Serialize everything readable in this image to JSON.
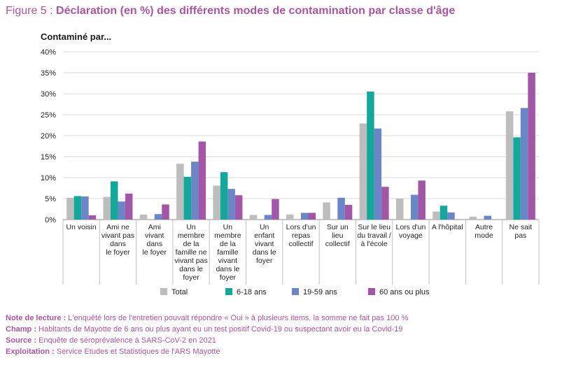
{
  "figure": {
    "number_label": "Figure 5 : ",
    "title": "Déclaration (en %) des différents modes de contamination par classe d'âge"
  },
  "chart_data": {
    "type": "bar",
    "ylabel": "Contaminé par...",
    "xlabel": "",
    "ylim": [
      0,
      40
    ],
    "yticks": [
      0,
      5,
      10,
      15,
      20,
      25,
      30,
      35,
      40
    ],
    "ytick_labels": [
      "0%",
      "5%",
      "10%",
      "15%",
      "20%",
      "25%",
      "30%",
      "35%",
      "40%"
    ],
    "grid": true,
    "legend_position": "bottom",
    "categories": [
      [
        "Un voisin"
      ],
      [
        "Ami ne",
        "vivant pas",
        "dans",
        "le foyer"
      ],
      [
        "Ami",
        "vivant",
        "dans",
        "le foyer"
      ],
      [
        "Un",
        "membre",
        "de la",
        "famille ne",
        "vivant pas",
        "dans le",
        "foyer"
      ],
      [
        "Un",
        "membre",
        "de la",
        "famille",
        "vivant",
        "dans le",
        "foyer"
      ],
      [
        "Un",
        "enfant",
        "vivant",
        "dans le",
        "foyer"
      ],
      [
        "Lors d'un",
        "repas",
        "collectif"
      ],
      [
        "Sur un",
        "lieu",
        "collectif"
      ],
      [
        "Sur le lieu",
        "du travail /",
        "à l'école"
      ],
      [
        "Lors d'un",
        "voyage"
      ],
      [
        "A l'hôpital"
      ],
      [
        "Autre",
        "mode"
      ],
      [
        "Ne sait",
        "pas"
      ]
    ],
    "series": [
      {
        "name": "Total",
        "color": "#bdbdbd",
        "values": [
          5.2,
          5.4,
          1.2,
          13.3,
          8.1,
          1.1,
          1.2,
          4.1,
          22.9,
          5.0,
          1.9,
          0.7,
          25.8
        ]
      },
      {
        "name": "6-18 ans",
        "color": "#14a89a",
        "values": [
          5.6,
          9.1,
          0.0,
          10.2,
          11.3,
          0.0,
          0.0,
          0.0,
          30.5,
          0.0,
          3.3,
          0.0,
          19.6
        ]
      },
      {
        "name": "19-59 ans",
        "color": "#6a86c6",
        "values": [
          5.5,
          4.3,
          1.3,
          13.8,
          7.3,
          1.1,
          1.6,
          5.2,
          21.7,
          5.9,
          1.7,
          0.9,
          26.6
        ]
      },
      {
        "name": "60 ans ou plus",
        "color": "#a157a5",
        "values": [
          1.0,
          6.2,
          3.6,
          18.6,
          5.8,
          4.9,
          1.6,
          3.5,
          7.8,
          9.3,
          0.0,
          0.0,
          35.0
        ]
      }
    ]
  },
  "notes": [
    {
      "label": "Note de lecture :",
      "text": " L'enquêté lors de l'entretien pouvait répondre « Oui » à plusieurs items, la somme ne fait pas 100 %"
    },
    {
      "label": "Champ :",
      "text": " Habitants de Mayotte de 6 ans ou plus ayant eu un test positif Covid-19 ou suspectant avoir eu la Covid-19"
    },
    {
      "label": "Source :",
      "text": " Enquête de séroprévalence à SARS-CoV-2 en 2021"
    },
    {
      "label": "Exploitation :",
      "text": " Service Etudes et Statistiques de l'ARS Mayotte"
    }
  ]
}
